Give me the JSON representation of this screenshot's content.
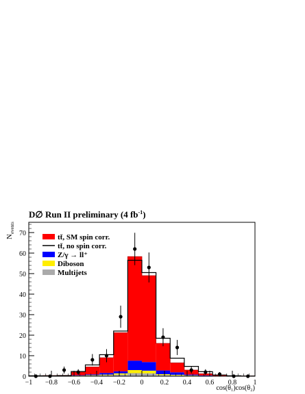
{
  "chart_data": {
    "type": "bar",
    "title": "D∅ Run II preliminary (4 fb",
    "title_sup": "-1",
    "title_end": ")",
    "ylabel": "N",
    "ylabel_sub": "events",
    "xlabel": "cos(θ₁)cos(θ₂)",
    "xlim": [
      -1,
      1
    ],
    "ylim": [
      0,
      75
    ],
    "xticks": [
      -1,
      -0.8,
      -0.6,
      -0.4,
      -0.2,
      0,
      0.2,
      0.4,
      0.6,
      0.8,
      1
    ],
    "xtick_labels": [
      "−1",
      "−0.8",
      "−0.6",
      "−0.4",
      "−0.2",
      "0",
      "0.2",
      "0.4",
      "0.6",
      "0.8",
      "1"
    ],
    "yticks": [
      0,
      10,
      20,
      30,
      40,
      50,
      60,
      70
    ],
    "ytick_labels": [
      "0",
      "10",
      "20",
      "30",
      "40",
      "50",
      "60",
      "70"
    ],
    "bin_edges": [
      -1,
      -0.875,
      -0.75,
      -0.625,
      -0.5,
      -0.375,
      -0.25,
      -0.125,
      0,
      0.125,
      0.25,
      0.375,
      0.5,
      0.625,
      0.75,
      0.875,
      1
    ],
    "stack": [
      {
        "name": "Multijets",
        "color": "#aaaaaa",
        "values": [
          0,
          0,
          0,
          0.2,
          0.3,
          0.5,
          0.8,
          1.5,
          1.4,
          0.6,
          0.4,
          0.2,
          0.1,
          0.1,
          0,
          0
        ]
      },
      {
        "name": "Diboson",
        "color": "#ffee00",
        "values": [
          0,
          0,
          0,
          0.1,
          0.2,
          0.3,
          0.6,
          1.5,
          1.3,
          0.4,
          0.3,
          0.2,
          0.1,
          0,
          0,
          0
        ]
      },
      {
        "name": "Z/γ → ll",
        "color": "#0000ff",
        "values": [
          0,
          0.1,
          0.1,
          0.2,
          0.4,
          0.8,
          1.0,
          4.6,
          4.2,
          1.8,
          1.2,
          0.4,
          0.2,
          0.1,
          0,
          0
        ]
      },
      {
        "name": "tt̄, SM spin corr.",
        "color": "#ff0000",
        "values": [
          0.2,
          0.2,
          0.3,
          1.5,
          3.6,
          7.4,
          18.8,
          50.7,
          42.1,
          13.2,
          4.6,
          2.2,
          0.8,
          0.3,
          0.1,
          0.1
        ]
      }
    ],
    "no_spin_total": [
      0.2,
      0.2,
      0.3,
      2.3,
      5.5,
      10.5,
      22.0,
      56.5,
      50.5,
      18.5,
      8.8,
      4.8,
      2.2,
      0.6,
      0.2,
      0.1
    ],
    "data_points": {
      "x": [
        -0.9375,
        -0.8125,
        -0.6875,
        -0.5625,
        -0.4375,
        -0.3125,
        -0.1875,
        -0.0625,
        0.0625,
        0.1875,
        0.3125,
        0.4375,
        0.5625,
        0.6875,
        0.8125,
        0.9375
      ],
      "y": [
        0,
        0,
        3,
        2,
        8,
        10,
        29,
        62,
        53,
        19,
        14,
        3,
        2,
        1,
        0,
        0
      ],
      "err": [
        0,
        0,
        1.7,
        1.4,
        2.8,
        3.2,
        5.4,
        7.9,
        7.3,
        4.4,
        3.7,
        1.7,
        1.4,
        1,
        0,
        0
      ]
    },
    "legend": {
      "placement": "top-left",
      "entries": [
        {
          "label": "tt̄, SM spin corr.",
          "kind": "fill",
          "color": "#ff0000"
        },
        {
          "label": "tt̄, no spin corr.",
          "kind": "line",
          "color": "#000000"
        },
        {
          "label": "Z/γ → ll⁺",
          "kind": "fill",
          "color": "#0000ff"
        },
        {
          "label": "Diboson",
          "kind": "fill",
          "color": "#ffee00"
        },
        {
          "label": "Multijets",
          "kind": "fill",
          "color": "#aaaaaa"
        }
      ]
    }
  }
}
